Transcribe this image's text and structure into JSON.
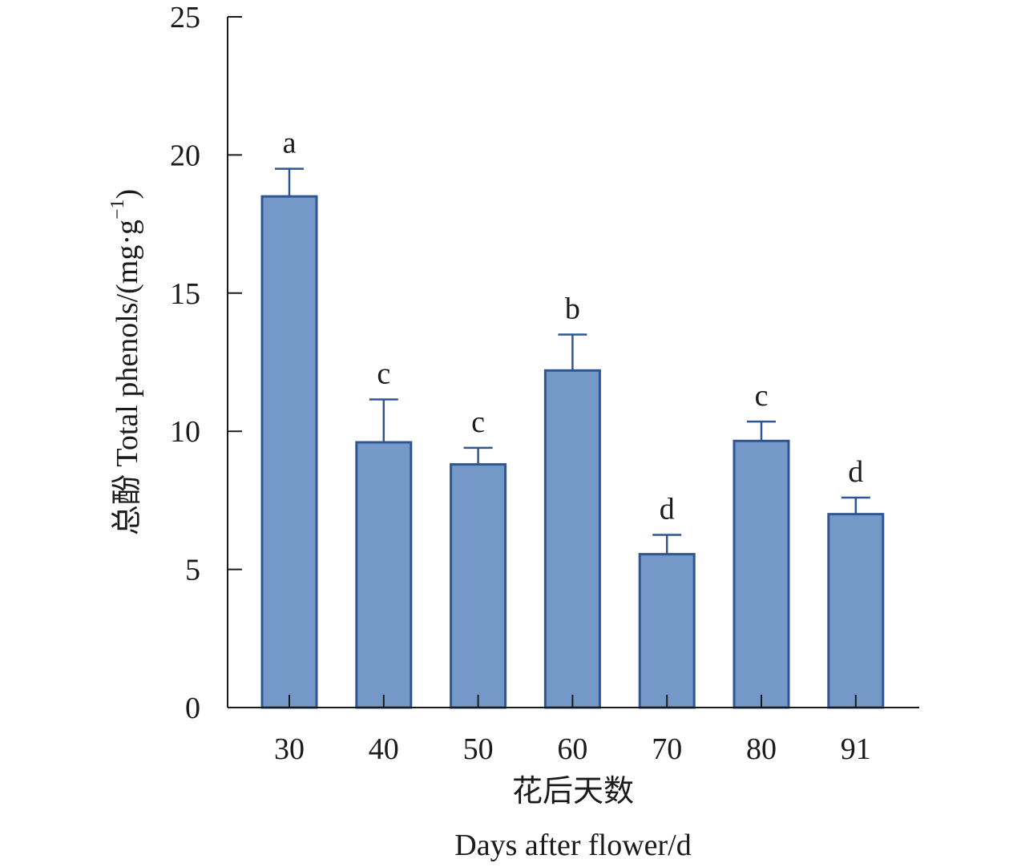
{
  "chart_data": {
    "type": "bar",
    "title": "",
    "categories": [
      "30",
      "40",
      "50",
      "60",
      "70",
      "80",
      "91"
    ],
    "values": [
      18.5,
      9.6,
      8.8,
      12.2,
      5.55,
      9.65,
      7.0
    ],
    "error_plus": [
      1.0,
      1.55,
      0.6,
      1.3,
      0.7,
      0.7,
      0.6
    ],
    "significance": [
      "a",
      "c",
      "c",
      "b",
      "d",
      "c",
      "d"
    ],
    "xlabel_cn": "花后天数",
    "xlabel_en": "Days after flower/d",
    "ylabel_main": "总酚 Total phenols/(mg·g",
    "ylabel_sup": "−1",
    "ylabel_close": ")",
    "ylim": [
      0,
      25
    ],
    "yticks": [
      0,
      5,
      10,
      15,
      20,
      25
    ],
    "grid": false,
    "legend": "none",
    "colors": {
      "bar_fill": "#7499c9",
      "bar_edge": "#2f5690",
      "axis": "#1a1a1a",
      "text": "#1a1a1a"
    }
  }
}
